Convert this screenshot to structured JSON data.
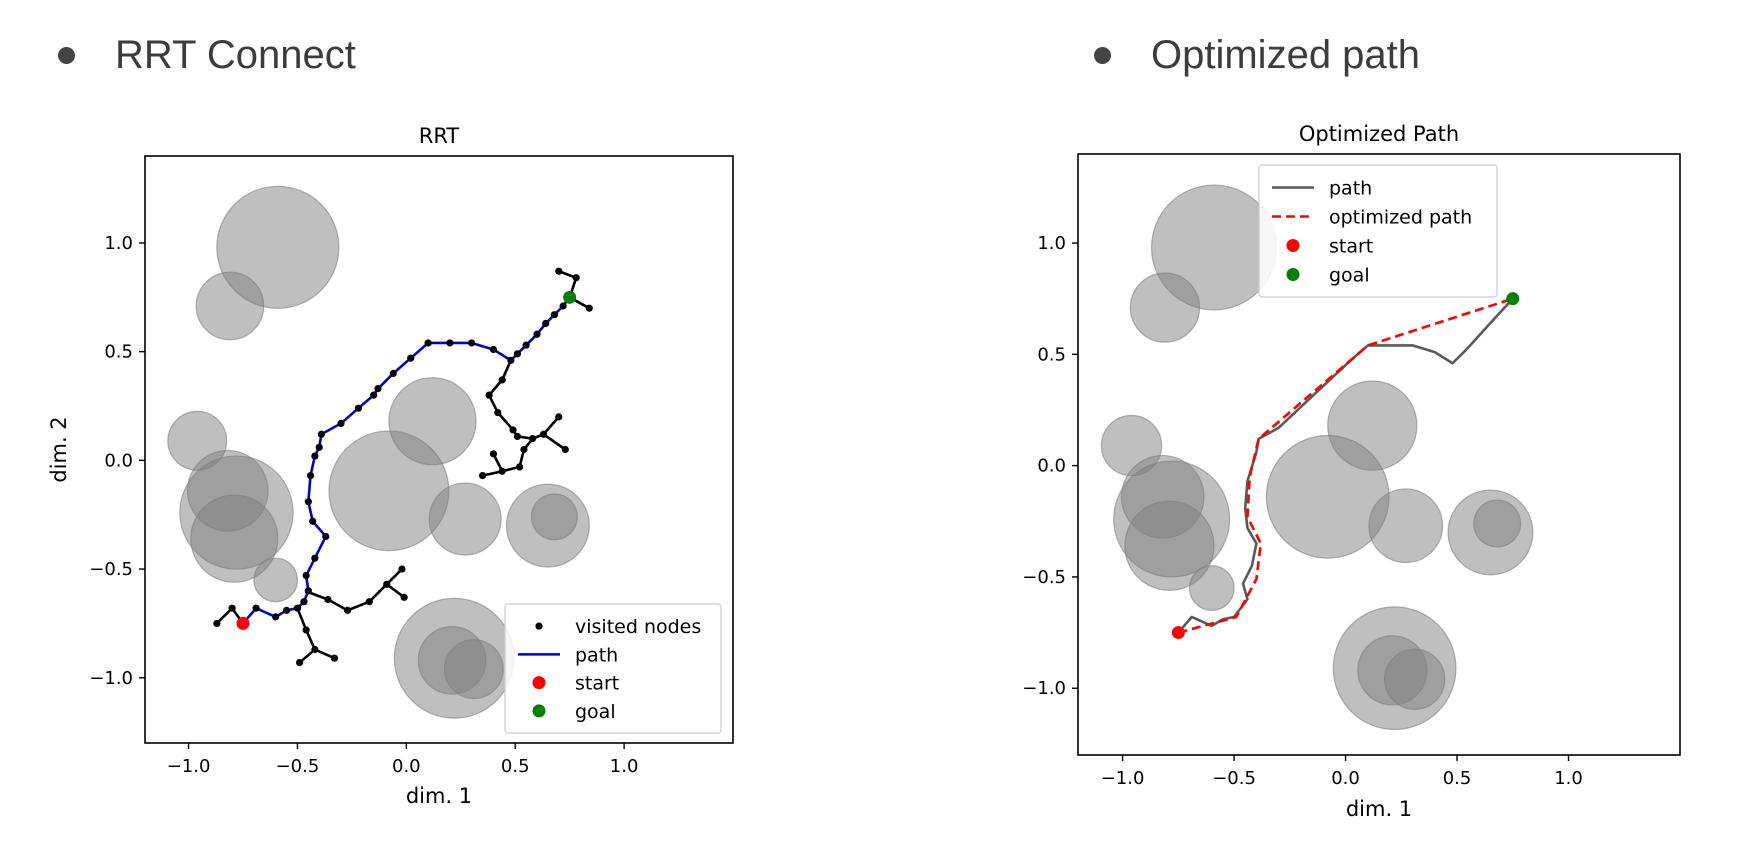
{
  "headings": {
    "left": "RRT Connect",
    "right": "Optimized path"
  },
  "colors": {
    "obstacle": "#7f7f7f",
    "path_blue": "#0000cc",
    "nodes": "#000000",
    "start": "#ff0000",
    "goal": "#008000",
    "gray_path": "#595959",
    "optimized": "#ff0000"
  },
  "chart_data": [
    {
      "type": "scatter",
      "title": "RRT",
      "xlabel": "dim. 1",
      "ylabel": "dim. 2",
      "xlim": [
        -1.2,
        1.5
      ],
      "ylim": [
        -1.3,
        1.4
      ],
      "xticks": [
        "−1.0",
        "−0.5",
        "0.0",
        "0.5",
        "1.0"
      ],
      "yticks": [
        "−1.0",
        "−0.5",
        "0.0",
        "0.5",
        "1.0"
      ],
      "grid": false,
      "legend_position": "lower right",
      "legend": [
        "visited nodes",
        "path",
        "start",
        "goal"
      ],
      "obstacles": [
        {
          "cx": -0.59,
          "cy": 0.98,
          "r": 0.28
        },
        {
          "cx": -0.81,
          "cy": 0.71,
          "r": 0.155
        },
        {
          "cx": -0.96,
          "cy": 0.09,
          "r": 0.135
        },
        {
          "cx": -0.82,
          "cy": -0.14,
          "r": 0.185
        },
        {
          "cx": -0.78,
          "cy": -0.24,
          "r": 0.26
        },
        {
          "cx": -0.79,
          "cy": -0.36,
          "r": 0.2
        },
        {
          "cx": -0.6,
          "cy": -0.55,
          "r": 0.1
        },
        {
          "cx": 0.12,
          "cy": 0.18,
          "r": 0.2
        },
        {
          "cx": -0.08,
          "cy": -0.14,
          "r": 0.275
        },
        {
          "cx": 0.27,
          "cy": -0.27,
          "r": 0.165
        },
        {
          "cx": 0.65,
          "cy": -0.3,
          "r": 0.19
        },
        {
          "cx": 0.68,
          "cy": -0.26,
          "r": 0.105
        },
        {
          "cx": 0.22,
          "cy": -0.91,
          "r": 0.275
        },
        {
          "cx": 0.21,
          "cy": -0.92,
          "r": 0.155
        },
        {
          "cx": 0.31,
          "cy": -0.96,
          "r": 0.135
        }
      ],
      "path": [
        [
          -0.75,
          -0.75
        ],
        [
          -0.69,
          -0.68
        ],
        [
          -0.6,
          -0.72
        ],
        [
          -0.55,
          -0.69
        ],
        [
          -0.5,
          -0.68
        ],
        [
          -0.47,
          -0.65
        ],
        [
          -0.45,
          -0.6
        ],
        [
          -0.46,
          -0.53
        ],
        [
          -0.42,
          -0.45
        ],
        [
          -0.37,
          -0.35
        ],
        [
          -0.43,
          -0.28
        ],
        [
          -0.45,
          -0.19
        ],
        [
          -0.44,
          -0.07
        ],
        [
          -0.42,
          0.02
        ],
        [
          -0.4,
          0.06
        ],
        [
          -0.39,
          0.12
        ],
        [
          -0.3,
          0.17
        ],
        [
          -0.22,
          0.24
        ],
        [
          -0.15,
          0.3
        ],
        [
          -0.13,
          0.33
        ],
        [
          -0.06,
          0.4
        ],
        [
          0.02,
          0.47
        ],
        [
          0.1,
          0.54
        ],
        [
          0.2,
          0.54
        ],
        [
          0.3,
          0.54
        ],
        [
          0.4,
          0.51
        ],
        [
          0.48,
          0.46
        ],
        [
          0.51,
          0.49
        ],
        [
          0.55,
          0.53
        ],
        [
          0.6,
          0.58
        ],
        [
          0.64,
          0.63
        ],
        [
          0.68,
          0.67
        ],
        [
          0.72,
          0.71
        ],
        [
          0.75,
          0.75
        ]
      ],
      "visited_edges": [
        [
          [
            -0.75,
            -0.75
          ],
          [
            -0.8,
            -0.68
          ]
        ],
        [
          [
            -0.8,
            -0.68
          ],
          [
            -0.87,
            -0.75
          ]
        ],
        [
          [
            0.75,
            0.75
          ],
          [
            0.78,
            0.84
          ]
        ],
        [
          [
            0.78,
            0.84
          ],
          [
            0.7,
            0.87
          ]
        ],
        [
          [
            0.75,
            0.75
          ],
          [
            0.84,
            0.7
          ]
        ],
        [
          [
            0.48,
            0.46
          ],
          [
            0.44,
            0.37
          ]
        ],
        [
          [
            0.44,
            0.37
          ],
          [
            0.38,
            0.3
          ]
        ],
        [
          [
            0.38,
            0.3
          ],
          [
            0.42,
            0.22
          ]
        ],
        [
          [
            0.42,
            0.22
          ],
          [
            0.49,
            0.14
          ]
        ],
        [
          [
            0.49,
            0.14
          ],
          [
            0.51,
            0.11
          ]
        ],
        [
          [
            0.51,
            0.11
          ],
          [
            0.58,
            0.1
          ]
        ],
        [
          [
            0.58,
            0.1
          ],
          [
            0.63,
            0.12
          ]
        ],
        [
          [
            0.63,
            0.12
          ],
          [
            0.7,
            0.2
          ]
        ],
        [
          [
            0.63,
            0.12
          ],
          [
            0.73,
            0.05
          ]
        ],
        [
          [
            0.58,
            0.1
          ],
          [
            0.54,
            0.05
          ]
        ],
        [
          [
            0.54,
            0.05
          ],
          [
            0.52,
            -0.03
          ]
        ],
        [
          [
            0.52,
            -0.03
          ],
          [
            0.44,
            -0.05
          ]
        ],
        [
          [
            0.44,
            -0.05
          ],
          [
            0.4,
            0.03
          ]
        ],
        [
          [
            0.44,
            -0.05
          ],
          [
            0.35,
            -0.07
          ]
        ],
        [
          [
            -0.44,
            -0.61
          ],
          [
            -0.36,
            -0.64
          ]
        ],
        [
          [
            -0.36,
            -0.64
          ],
          [
            -0.27,
            -0.69
          ]
        ],
        [
          [
            -0.27,
            -0.69
          ],
          [
            -0.17,
            -0.65
          ]
        ],
        [
          [
            -0.17,
            -0.65
          ],
          [
            -0.09,
            -0.57
          ]
        ],
        [
          [
            -0.09,
            -0.57
          ],
          [
            -0.02,
            -0.5
          ]
        ],
        [
          [
            -0.09,
            -0.57
          ],
          [
            -0.01,
            -0.63
          ]
        ],
        [
          [
            -0.5,
            -0.68
          ],
          [
            -0.46,
            -0.78
          ]
        ],
        [
          [
            -0.46,
            -0.78
          ],
          [
            -0.42,
            -0.87
          ]
        ],
        [
          [
            -0.42,
            -0.87
          ],
          [
            -0.49,
            -0.93
          ]
        ],
        [
          [
            -0.42,
            -0.87
          ],
          [
            -0.33,
            -0.91
          ]
        ]
      ],
      "start": [
        -0.75,
        -0.75
      ],
      "goal": [
        0.75,
        0.75
      ]
    },
    {
      "type": "line",
      "title": "Optimized Path",
      "xlabel": "dim. 1",
      "ylabel": "",
      "xlim": [
        -1.2,
        1.5
      ],
      "ylim": [
        -1.3,
        1.4
      ],
      "xticks": [
        "−1.0",
        "−0.5",
        "0.0",
        "0.5",
        "1.0"
      ],
      "yticks": [
        "−1.0",
        "−0.5",
        "0.0",
        "0.5",
        "1.0"
      ],
      "grid": false,
      "legend_position": "upper center",
      "legend": [
        "path",
        "optimized path",
        "start",
        "goal"
      ],
      "series": [
        {
          "name": "path",
          "points": [
            [
              -0.75,
              -0.75
            ],
            [
              -0.69,
              -0.68
            ],
            [
              -0.6,
              -0.72
            ],
            [
              -0.55,
              -0.69
            ],
            [
              -0.5,
              -0.68
            ],
            [
              -0.44,
              -0.6
            ],
            [
              -0.46,
              -0.53
            ],
            [
              -0.42,
              -0.45
            ],
            [
              -0.4,
              -0.35
            ],
            [
              -0.44,
              -0.28
            ],
            [
              -0.45,
              -0.19
            ],
            [
              -0.44,
              -0.07
            ],
            [
              -0.4,
              0.06
            ],
            [
              -0.39,
              0.12
            ],
            [
              -0.3,
              0.17
            ],
            [
              -0.13,
              0.33
            ],
            [
              0.02,
              0.47
            ],
            [
              0.1,
              0.54
            ],
            [
              0.3,
              0.54
            ],
            [
              0.4,
              0.51
            ],
            [
              0.48,
              0.46
            ],
            [
              0.55,
              0.53
            ],
            [
              0.64,
              0.63
            ],
            [
              0.75,
              0.75
            ]
          ]
        },
        {
          "name": "optimized path",
          "points": [
            [
              -0.75,
              -0.75
            ],
            [
              -0.49,
              -0.68
            ],
            [
              -0.4,
              -0.51
            ],
            [
              -0.38,
              -0.35
            ],
            [
              -0.44,
              -0.23
            ],
            [
              -0.43,
              -0.05
            ],
            [
              -0.39,
              0.12
            ],
            [
              0.1,
              0.54
            ],
            [
              0.75,
              0.75
            ]
          ]
        }
      ],
      "obstacles": [
        {
          "cx": -0.59,
          "cy": 0.98,
          "r": 0.28
        },
        {
          "cx": -0.81,
          "cy": 0.71,
          "r": 0.155
        },
        {
          "cx": -0.96,
          "cy": 0.09,
          "r": 0.135
        },
        {
          "cx": -0.82,
          "cy": -0.14,
          "r": 0.185
        },
        {
          "cx": -0.78,
          "cy": -0.24,
          "r": 0.26
        },
        {
          "cx": -0.79,
          "cy": -0.36,
          "r": 0.2
        },
        {
          "cx": -0.6,
          "cy": -0.55,
          "r": 0.1
        },
        {
          "cx": 0.12,
          "cy": 0.18,
          "r": 0.2
        },
        {
          "cx": -0.08,
          "cy": -0.14,
          "r": 0.275
        },
        {
          "cx": 0.27,
          "cy": -0.27,
          "r": 0.165
        },
        {
          "cx": 0.65,
          "cy": -0.3,
          "r": 0.19
        },
        {
          "cx": 0.68,
          "cy": -0.26,
          "r": 0.105
        },
        {
          "cx": 0.22,
          "cy": -0.91,
          "r": 0.275
        },
        {
          "cx": 0.21,
          "cy": -0.92,
          "r": 0.155
        },
        {
          "cx": 0.31,
          "cy": -0.96,
          "r": 0.135
        }
      ],
      "start": [
        -0.75,
        -0.75
      ],
      "goal": [
        0.75,
        0.75
      ]
    }
  ]
}
